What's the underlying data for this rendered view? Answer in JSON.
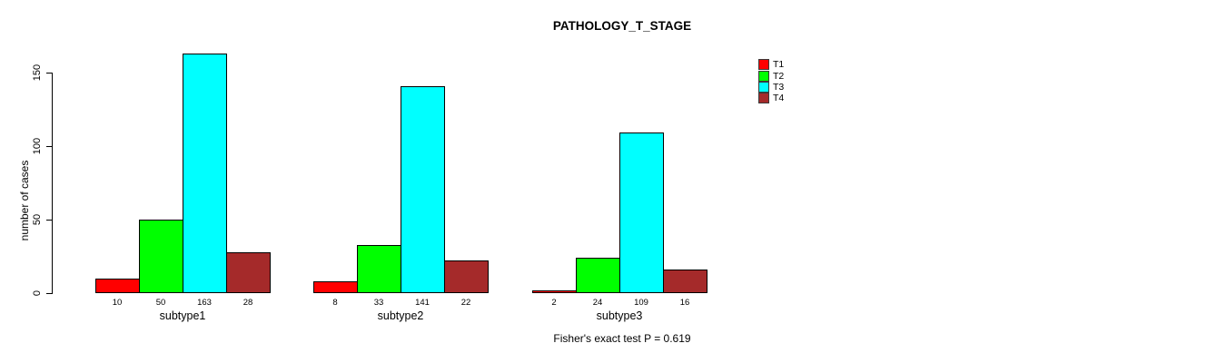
{
  "title": "PATHOLOGY_T_STAGE",
  "chart_data": {
    "type": "bar",
    "grouped": true,
    "title": "PATHOLOGY_T_STAGE",
    "ylabel": "number of cases",
    "xlabel": "",
    "categories": [
      "subtype1",
      "subtype2",
      "subtype3"
    ],
    "series": [
      {
        "name": "T1",
        "color": "#FF0000",
        "values": [
          10,
          8,
          2
        ]
      },
      {
        "name": "T2",
        "color": "#00FF00",
        "values": [
          50,
          33,
          24
        ]
      },
      {
        "name": "T3",
        "color": "#00FFFF",
        "values": [
          163,
          141,
          109
        ]
      },
      {
        "name": "T4",
        "color": "#A52A2A",
        "values": [
          28,
          22,
          16
        ]
      }
    ],
    "yticks": [
      0,
      50,
      100,
      150
    ],
    "ylim": [
      0,
      163
    ],
    "bar_value_labels": true,
    "legend_position": "top-right",
    "legend_entries": [
      "T1",
      "T2",
      "T3",
      "T4"
    ],
    "grid": false,
    "annotation": "Fisher's exact test P = 0.619",
    "background": "#FFFFFF",
    "axis_color": "#000000"
  }
}
